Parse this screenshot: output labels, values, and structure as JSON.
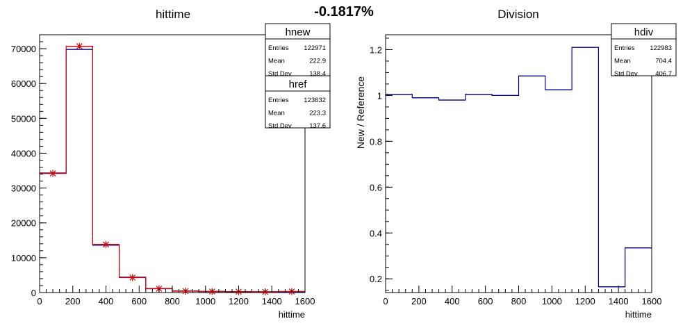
{
  "header": {
    "percent_text": "-0.1817%"
  },
  "chart_data": [
    {
      "type": "histogram",
      "title": "hittime",
      "xlabel": "hittime",
      "ylabel": "",
      "xlim": [
        0,
        1600
      ],
      "ylim": [
        0,
        74000
      ],
      "xticks": [
        "0",
        "200",
        "400",
        "600",
        "800",
        "1000",
        "1200",
        "1400",
        "1600"
      ],
      "yticks": [
        "0",
        "10000",
        "20000",
        "30000",
        "40000",
        "50000",
        "60000",
        "70000"
      ],
      "bin_edges": [
        0,
        160,
        320,
        480,
        640,
        800,
        960,
        1120,
        1280,
        1440,
        1600
      ],
      "series": [
        {
          "name": "hnew",
          "color": "#00008b",
          "values": [
            34300,
            69800,
            13600,
            4400,
            1150,
            450,
            310,
            250,
            210,
            100
          ]
        },
        {
          "name": "href",
          "color": "#d10000",
          "values": [
            34200,
            70700,
            13800,
            4300,
            1100,
            400,
            300,
            250,
            200,
            300
          ]
        }
      ],
      "stats_boxes": [
        {
          "name": "hnew",
          "rows": [
            {
              "label": "Entries",
              "value": "122971"
            },
            {
              "label": "Mean",
              "value": "222.9"
            },
            {
              "label": "Std Dev",
              "value": "138.4"
            }
          ]
        },
        {
          "name": "href",
          "rows": [
            {
              "label": "Entries",
              "value": "123632"
            },
            {
              "label": "Mean",
              "value": "223.3"
            },
            {
              "label": "Std Dev",
              "value": "137.6"
            }
          ]
        }
      ]
    },
    {
      "type": "histogram",
      "title": "Division",
      "xlabel": "hittime",
      "ylabel": "New / Reference",
      "xlim": [
        0,
        1600
      ],
      "ylim": [
        0.14,
        1.265
      ],
      "xticks": [
        "0",
        "200",
        "400",
        "600",
        "800",
        "1000",
        "1200",
        "1400",
        "1600"
      ],
      "yticks": [
        "0.2",
        "0.4",
        "0.6",
        "0.8",
        "1",
        "1.2"
      ],
      "bin_edges": [
        0,
        160,
        320,
        480,
        640,
        800,
        960,
        1120,
        1280,
        1440,
        1600
      ],
      "series": [
        {
          "name": "hdiv",
          "color": "#00008b",
          "values": [
            1.005,
            0.99,
            0.98,
            1.005,
            1.0,
            1.085,
            1.025,
            1.21,
            0.165,
            0.335
          ]
        }
      ],
      "stats_boxes": [
        {
          "name": "hdiv",
          "rows": [
            {
              "label": "Entries",
              "value": "122983"
            },
            {
              "label": "Mean",
              "value": "704.4"
            },
            {
              "label": "Std Dev",
              "value": "406.7"
            }
          ]
        }
      ]
    }
  ]
}
